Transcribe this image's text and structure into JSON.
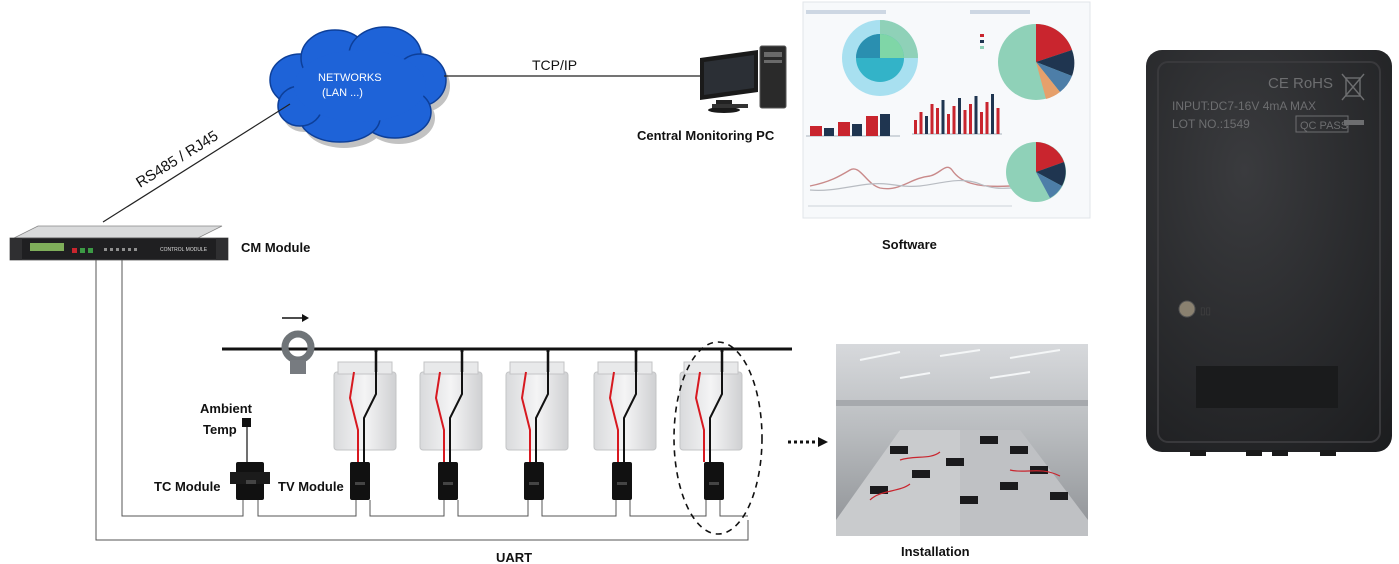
{
  "network": {
    "line1": "NETWORKS",
    "line2": "(LAN ...)"
  },
  "links": {
    "tcp": "TCP/IP",
    "rs485": "RS485 / RJ45",
    "uart": "UART"
  },
  "labels": {
    "central_pc": "Central Monitoring PC",
    "software": "Software",
    "cm_module": "CM Module",
    "cm_panel": "CONTROL MODULE",
    "ambient_1": "Ambient",
    "ambient_2": "Temp",
    "tc_module": "TC Module",
    "tv_module": "TV Module",
    "installation": "Installation"
  },
  "device": {
    "cert": "CE RoHS",
    "input": "INPUT:DC7-16V 4mA MAX",
    "lot": "LOT NO.:1549",
    "qc": "QC PASS"
  },
  "colors": {
    "cloud": "#1e63d8",
    "cloud_text": "#ffffff",
    "wire_red": "#d71920",
    "wire_black": "#111111",
    "device_body": "#2a2b2d",
    "chart_red": "#c9252e",
    "chart_navy": "#1f3550",
    "chart_teal": "#8fd1b8",
    "chart_cyan": "#33b3c8"
  }
}
